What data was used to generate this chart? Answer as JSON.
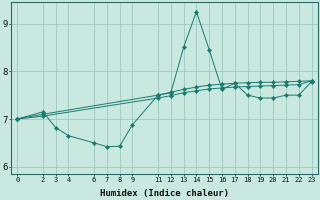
{
  "xlabel": "Humidex (Indice chaleur)",
  "background_color": "#c8e8e0",
  "grid_color": "#a0c8c0",
  "line_color": "#1a7a6e",
  "xlim": [
    -0.5,
    23.5
  ],
  "ylim": [
    5.85,
    9.45
  ],
  "xticks": [
    0,
    2,
    3,
    4,
    6,
    7,
    8,
    9,
    11,
    12,
    13,
    14,
    15,
    16,
    17,
    18,
    19,
    20,
    21,
    22,
    23
  ],
  "yticks": [
    6,
    7,
    8,
    9
  ],
  "line1_x": [
    0,
    2,
    3,
    4,
    6,
    7,
    8,
    9,
    11,
    12,
    13,
    14,
    15,
    16,
    17,
    18,
    19,
    20,
    21,
    22,
    23
  ],
  "line1_y": [
    7.0,
    7.15,
    6.82,
    6.65,
    6.5,
    6.42,
    6.43,
    6.88,
    7.5,
    7.55,
    8.5,
    9.25,
    8.45,
    7.62,
    7.75,
    7.5,
    7.44,
    7.44,
    7.5,
    7.5,
    7.78
  ],
  "line2_x": [
    0,
    2,
    11,
    12,
    13,
    14,
    15,
    16,
    17,
    18,
    19,
    20,
    21,
    22,
    23
  ],
  "line2_y": [
    7.0,
    7.1,
    7.5,
    7.56,
    7.62,
    7.67,
    7.71,
    7.73,
    7.75,
    7.76,
    7.77,
    7.77,
    7.78,
    7.79,
    7.8
  ],
  "line3_x": [
    0,
    2,
    11,
    12,
    13,
    14,
    15,
    16,
    17,
    18,
    19,
    20,
    21,
    22,
    23
  ],
  "line3_y": [
    7.0,
    7.06,
    7.44,
    7.49,
    7.55,
    7.59,
    7.63,
    7.65,
    7.67,
    7.68,
    7.69,
    7.7,
    7.71,
    7.72,
    7.8
  ]
}
